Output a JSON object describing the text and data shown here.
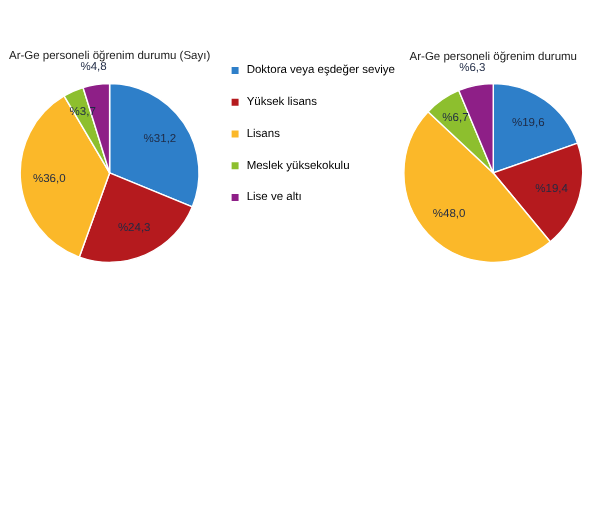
{
  "chart_data": [
    {
      "type": "pie",
      "title": "Ar-Ge personeli öğrenim durumu (Sayı)",
      "categories": [
        "Doktora veya eşdeğer seviye",
        "Yüksek lisans",
        "Lisans",
        "Meslek yüksekokulu",
        "Lise ve altı"
      ],
      "values": [
        31.2,
        24.3,
        36.0,
        3.7,
        4.8
      ],
      "colors": [
        "#2e7fc9",
        "#b51a1e",
        "#fbb829",
        "#8dbf2e",
        "#8e1f87"
      ],
      "value_labels": [
        "%31,2",
        "%24,3",
        "%36,0",
        "%3,7",
        "%4,8"
      ],
      "legend": "right"
    },
    {
      "type": "pie",
      "title": "Ar-Ge personeli öğrenim durumu",
      "categories": [
        null,
        null,
        null,
        null,
        null
      ],
      "values": [
        19.6,
        19.4,
        48.0,
        6.7,
        6.3
      ],
      "colors": [
        "#2e7fc9",
        "#b51a1e",
        "#fbb829",
        "#8dbf2e",
        "#8e1f87"
      ],
      "value_labels": [
        "%19,6",
        "%19,4",
        "%48,0",
        "%6,7",
        "%6,3"
      ],
      "legend": false
    }
  ]
}
